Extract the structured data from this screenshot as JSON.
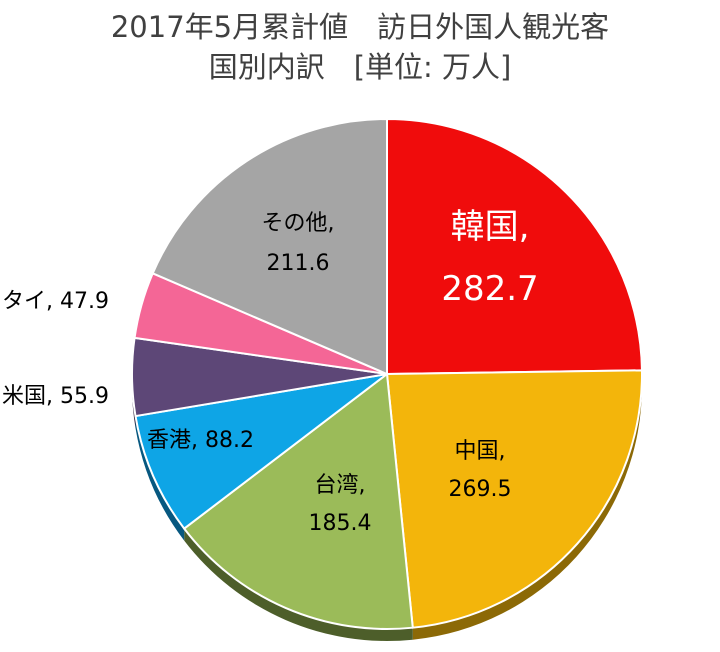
{
  "title_line1": "2017年5月累計値　訪日外国人観光客",
  "title_line2": "国別内訳　[単位: 万人]",
  "colors": {
    "korea": "#f00c0c",
    "china": "#f3b50b",
    "taiwan": "#9bbb59",
    "hongkong": "#0ea5e6",
    "usa": "#5d4777",
    "thailand": "#f46696",
    "other": "#a5a5a5"
  },
  "chart_data": {
    "type": "pie",
    "start": "12 o'clock",
    "direction": "clockwise",
    "slices": [
      {
        "name": "韓国",
        "value": 282.7,
        "name_text": "韓国,",
        "value_text": "282.7",
        "color": "#f00c0c",
        "side_color": "#8a0707"
      },
      {
        "name": "中国",
        "value": 269.5,
        "name_text": "中国,",
        "value_text": "269.5",
        "color": "#f3b50b",
        "side_color": "#8c6906"
      },
      {
        "name": "台湾",
        "value": 185.4,
        "name_text": "台湾,",
        "value_text": "185.4",
        "color": "#9bbb59",
        "side_color": "#4d5e2a"
      },
      {
        "name": "香港",
        "value": 88.2,
        "name_text": "香港, 88.2",
        "color": "#0ea5e6",
        "side_color": "#075880"
      },
      {
        "name": "米国",
        "value": 55.9,
        "name_text": "米国, 55.9",
        "color": "#5d4777",
        "side_color": "#30243d"
      },
      {
        "name": "タイ",
        "value": 47.9,
        "name_text": "タイ, 47.9",
        "color": "#f46696",
        "side_color": "#8c3355"
      },
      {
        "name": "その他",
        "value": 211.6,
        "name_text": "その他,",
        "value_text": "211.6",
        "color": "#a5a5a5",
        "side_color": "#555555"
      }
    ]
  }
}
